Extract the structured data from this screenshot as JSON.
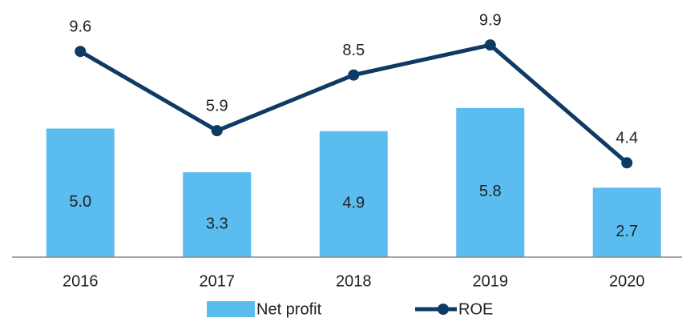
{
  "chart_data": {
    "type": "bar",
    "categories": [
      "2016",
      "2017",
      "2018",
      "2019",
      "2020"
    ],
    "ylim": [
      0,
      10
    ],
    "y2lim": [
      0,
      12
    ],
    "series": [
      {
        "name": "Net profit",
        "type": "bar",
        "color": "#5bbcf0",
        "values": [
          5.0,
          3.3,
          4.9,
          5.8,
          2.7
        ],
        "value_labels": [
          "5.0",
          "3.3",
          "4.9",
          "5.8",
          "2.7"
        ]
      },
      {
        "name": "ROE",
        "type": "line",
        "axis": "y2",
        "color": "#0e3a63",
        "values": [
          9.6,
          5.9,
          8.5,
          9.9,
          4.4
        ]
      }
    ]
  }
}
